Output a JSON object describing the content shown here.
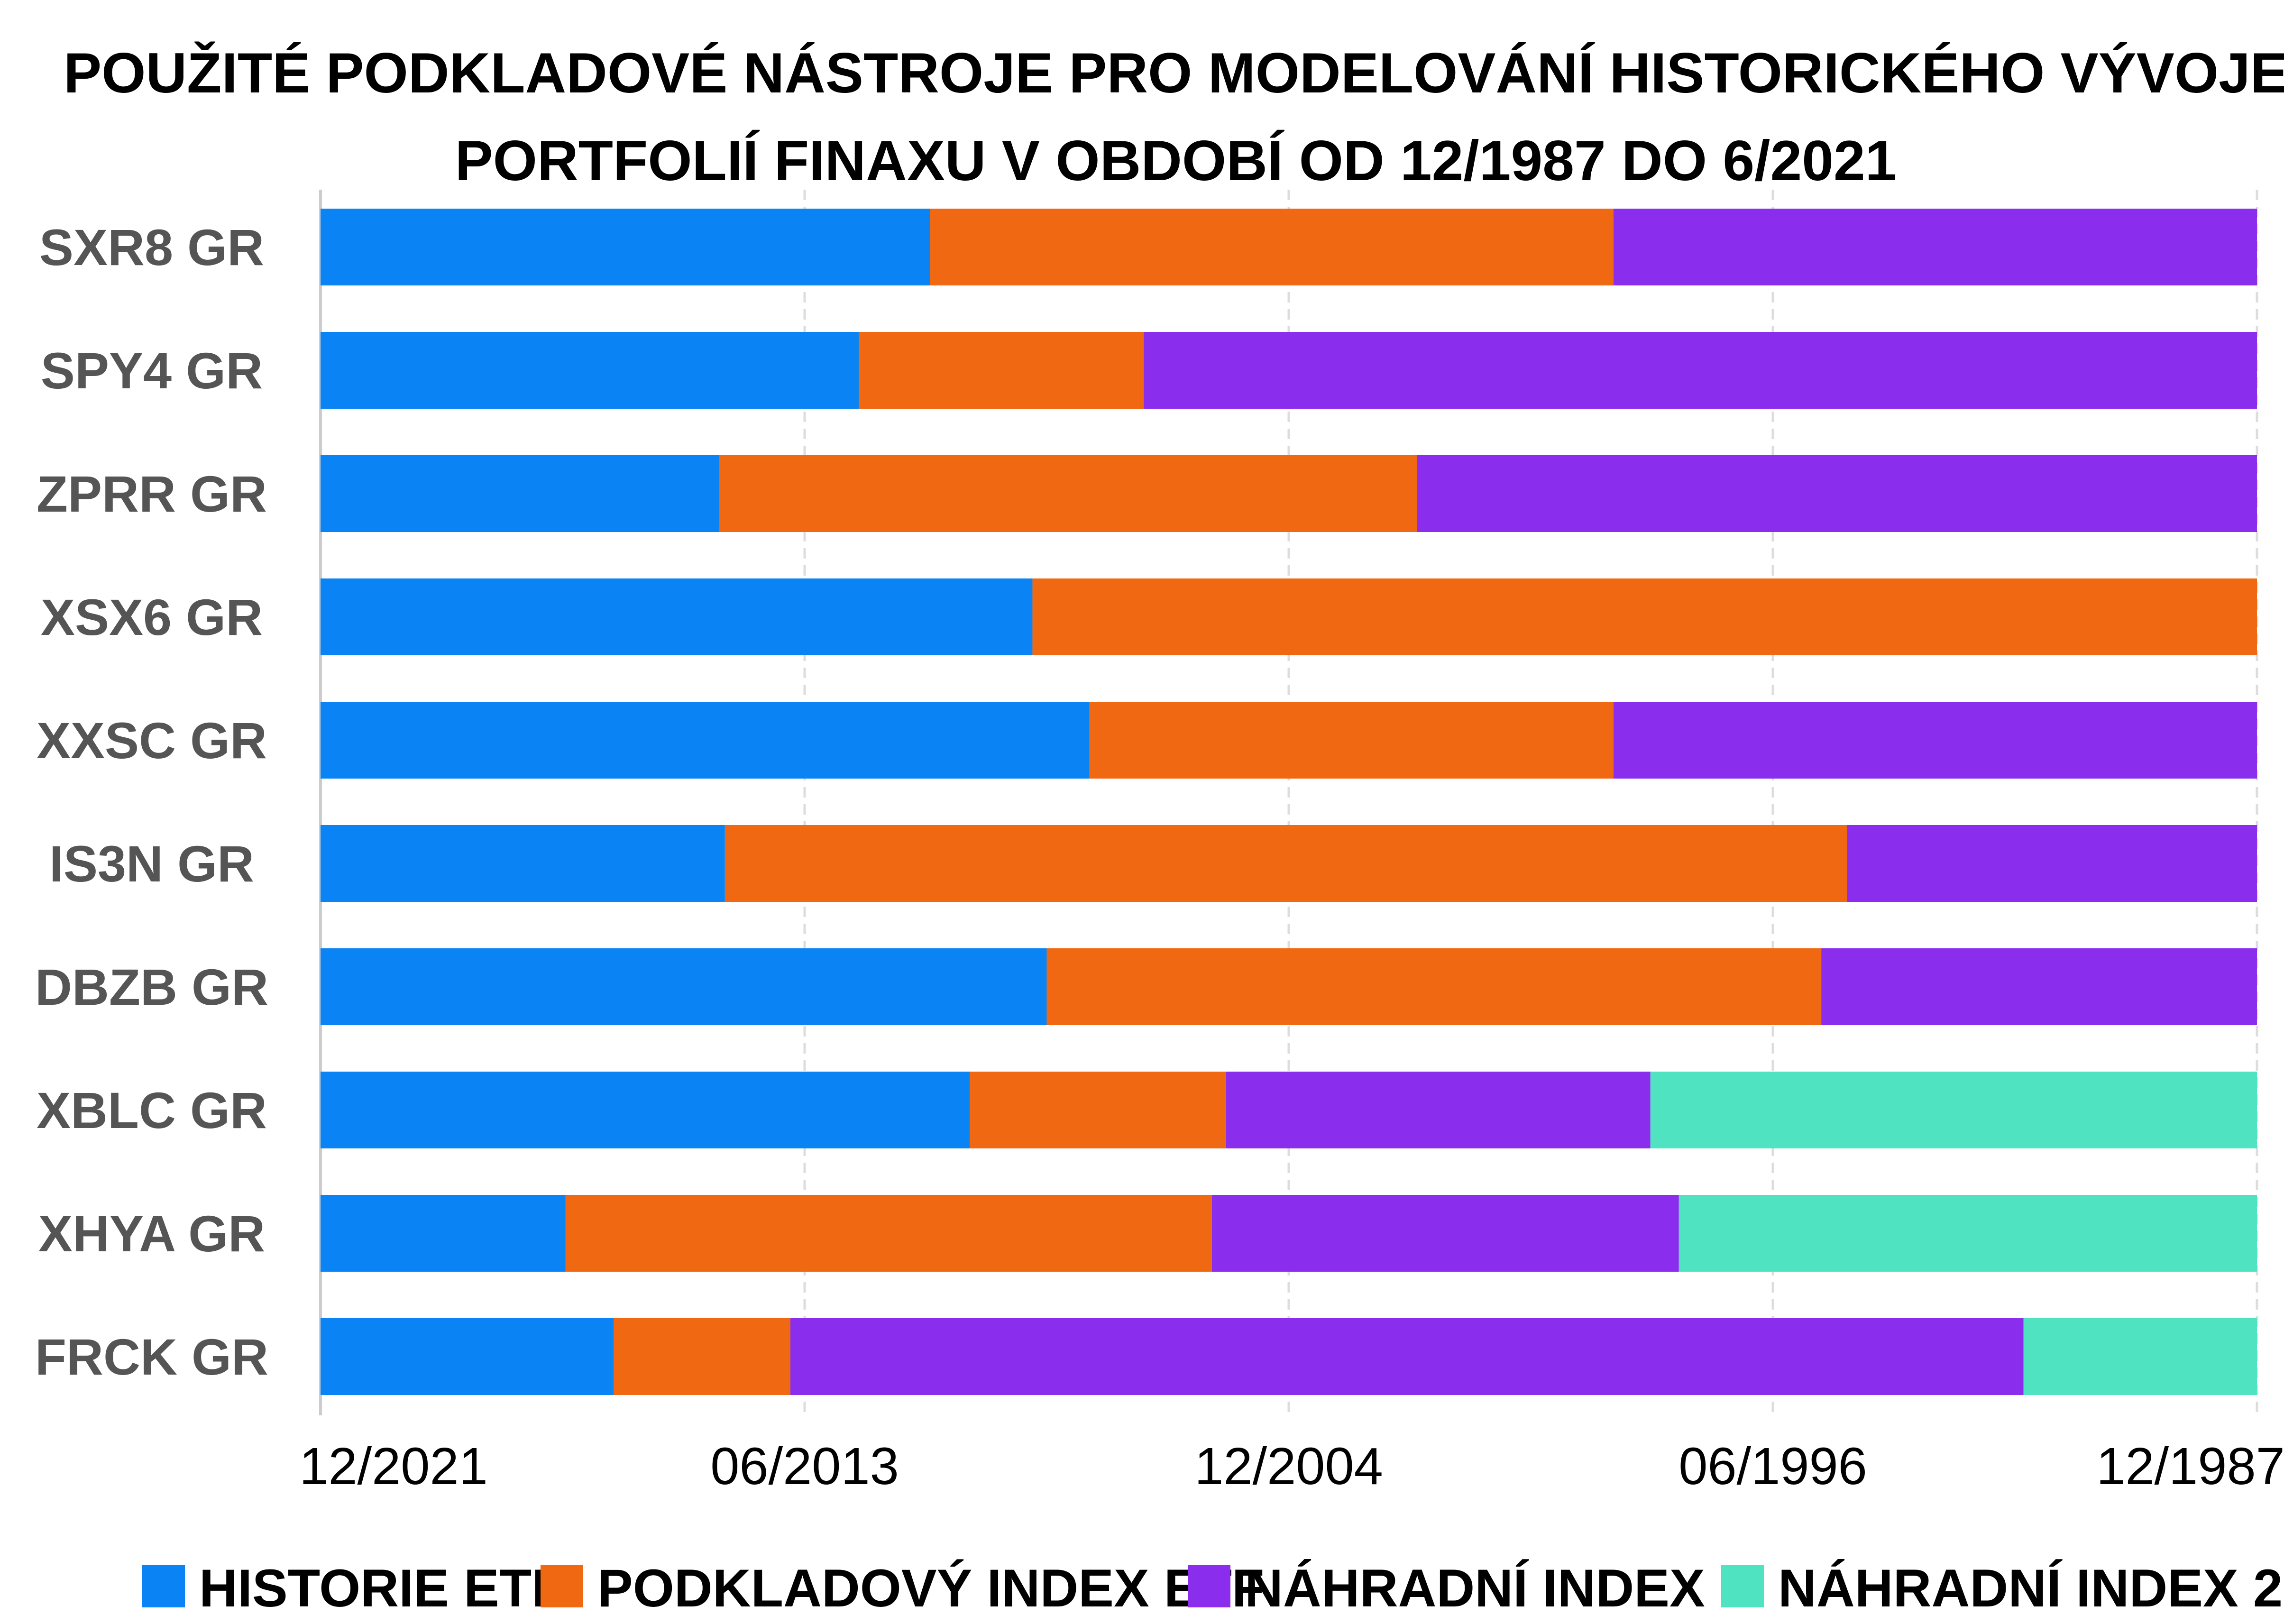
{
  "chart_data": {
    "type": "bar",
    "orientation": "horizontal",
    "stacked": true,
    "title_lines": [
      "POUŽITÉ PODKLADOVÉ NÁSTROJE PRO MODELOVÁNÍ HISTORICKÉHO VÝVOJE",
      "PORTFOLIÍ FINAXU V OBDOBÍ OD 12/1987 DO 6/2021"
    ],
    "x_tick_labels": [
      "12/2021",
      "06/2013",
      "12/2004",
      "06/1996",
      "12/1987"
    ],
    "x_unit": "years before 12/2021",
    "x_range": [
      0,
      34
    ],
    "grid": true,
    "legend_position": "bottom",
    "categories": [
      "SXR8 GR",
      "SPY4 GR",
      "ZPRR GR",
      "XSX6 GR",
      "XXSC GR",
      "IS3N GR",
      "DBZB GR",
      "XBLC GR",
      "XHYA GR",
      "FRCK GR"
    ],
    "series": [
      {
        "name": "HISTORIE ETF",
        "color": "#0a84f4",
        "values": [
          10.7,
          9.45,
          7.0,
          12.5,
          13.5,
          7.1,
          12.75,
          11.4,
          4.3,
          5.15
        ]
      },
      {
        "name": "PODKLADOVÝ INDEX ETF",
        "color": "#f06812",
        "values": [
          12.0,
          5.0,
          12.25,
          21.5,
          9.2,
          19.7,
          13.6,
          4.5,
          11.35,
          3.1
        ]
      },
      {
        "name": "NÁHRADNÍ INDEX 1",
        "color": "#8a2ded",
        "values": [
          11.3,
          19.55,
          14.75,
          0,
          11.3,
          7.2,
          7.65,
          7.45,
          8.2,
          21.65
        ]
      },
      {
        "name": "NÁHRADNÍ INDEX 2",
        "color": "#50e3c2",
        "values": [
          0,
          0,
          0,
          0,
          0,
          0,
          0,
          10.65,
          10.15,
          4.1
        ]
      }
    ]
  }
}
